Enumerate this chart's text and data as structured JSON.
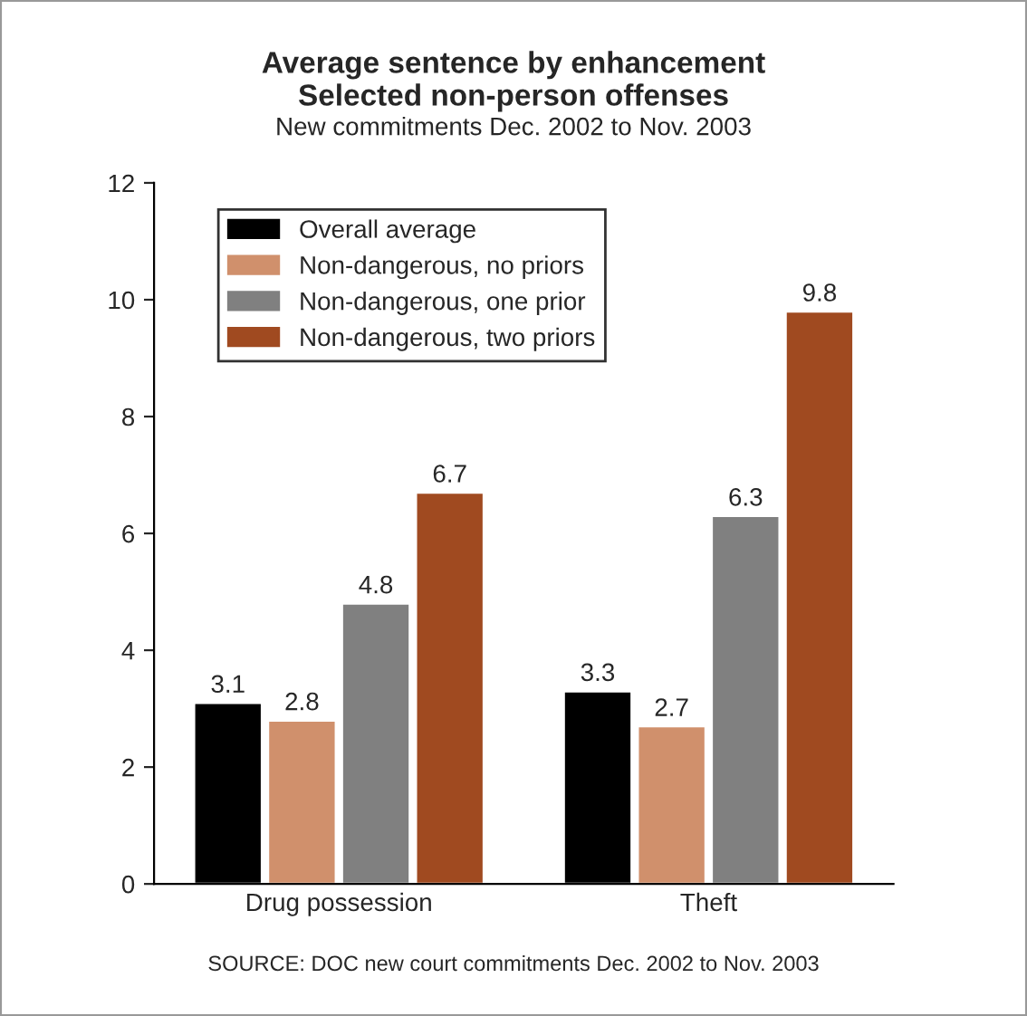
{
  "chart_data": {
    "type": "bar",
    "title": "Average sentence by enhancement\nSelected non-person offenses",
    "subtitle": "New commitments Dec. 2002 to Nov. 2003",
    "categories": [
      "Drug possession",
      "Theft"
    ],
    "series": [
      {
        "name": "Overall average",
        "color": "#000000",
        "values": [
          3.1,
          3.3
        ]
      },
      {
        "name": "Non-dangerous, no priors",
        "color": "#d0906c",
        "values": [
          2.8,
          2.7
        ]
      },
      {
        "name": "Non-dangerous, one prior",
        "color": "#808080",
        "values": [
          4.8,
          6.3
        ]
      },
      {
        "name": "Non-dangerous, two priors",
        "color": "#a04a20",
        "values": [
          6.7,
          9.8
        ]
      }
    ],
    "ylim": [
      0,
      12
    ],
    "yticks": [
      0,
      2,
      4,
      6,
      8,
      10,
      12
    ],
    "grid": false,
    "legend": "top left",
    "data_labels": true,
    "annotations": [
      "SOURCE: DOC new court commitments Dec. 2002 to Nov. 2003"
    ]
  }
}
